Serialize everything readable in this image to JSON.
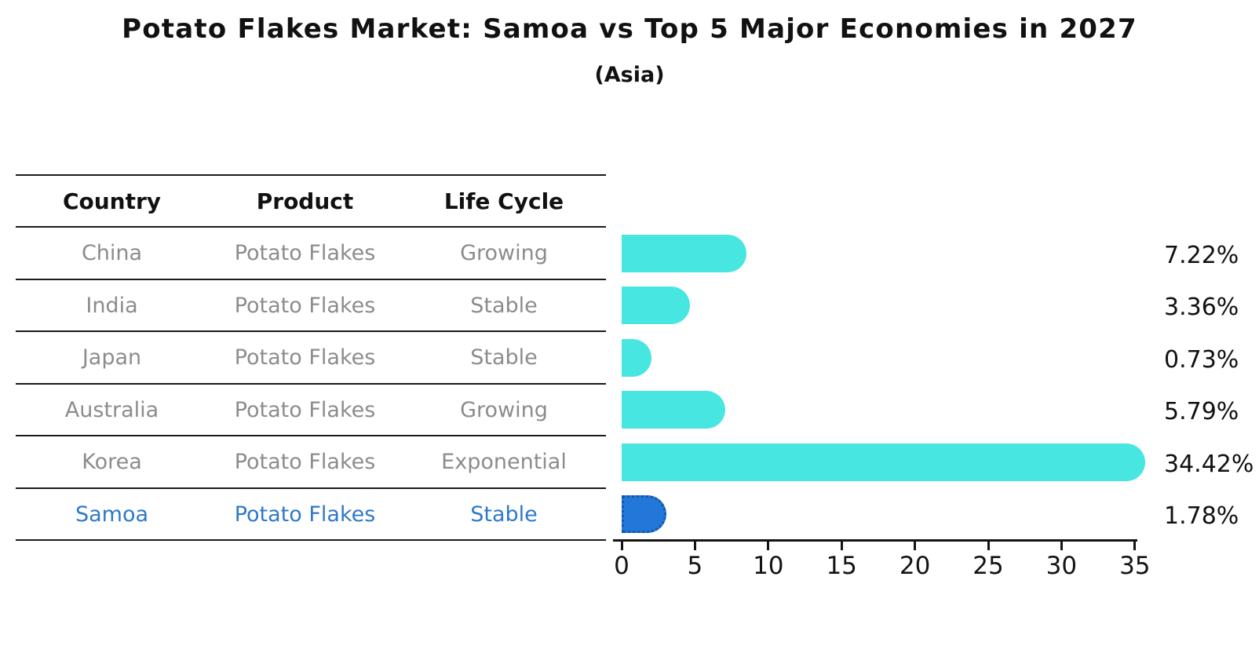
{
  "title": "Potato Flakes Market: Samoa vs Top 5 Major Economies in 2027",
  "subtitle": "(Asia)",
  "table": {
    "headers": [
      "Country",
      "Product",
      "Life Cycle"
    ],
    "rows": [
      {
        "country": "China",
        "product": "Potato Flakes",
        "life_cycle": "Growing"
      },
      {
        "country": "India",
        "product": "Potato Flakes",
        "life_cycle": "Stable"
      },
      {
        "country": "Japan",
        "product": "Potato Flakes",
        "life_cycle": "Stable"
      },
      {
        "country": "Australia",
        "product": "Potato Flakes",
        "life_cycle": "Growing"
      },
      {
        "country": "Korea",
        "product": "Potato Flakes",
        "life_cycle": "Exponential"
      },
      {
        "country": "Samoa",
        "product": "Potato Flakes",
        "life_cycle": "Stable"
      }
    ],
    "highlight_row": "Samoa"
  },
  "chart_data": {
    "type": "bar",
    "orientation": "horizontal",
    "title": "Potato Flakes Market: Samoa vs Top 5 Major Economies in 2027",
    "subtitle": "(Asia)",
    "categories": [
      "China",
      "India",
      "Japan",
      "Australia",
      "Korea",
      "Samoa"
    ],
    "values": [
      7.22,
      3.36,
      0.73,
      5.79,
      34.42,
      1.78
    ],
    "value_labels": [
      "7.22%",
      "3.36%",
      "0.73%",
      "5.79%",
      "34.42%",
      "1.78%"
    ],
    "x_ticks": [
      0,
      5,
      10,
      15,
      20,
      25,
      30,
      35
    ],
    "xlim": [
      0,
      35.5
    ],
    "grid": false,
    "legend": false,
    "bar_color": "#47E6E0",
    "highlight_color": "#2277D8",
    "highlight_edge_color": "#1558A8",
    "highlight_index": 5
  },
  "colors": {
    "table_text": "#8C8C8C",
    "header_text": "#111111",
    "highlight_text": "#2E79C8",
    "line": "#1a1a1a"
  }
}
